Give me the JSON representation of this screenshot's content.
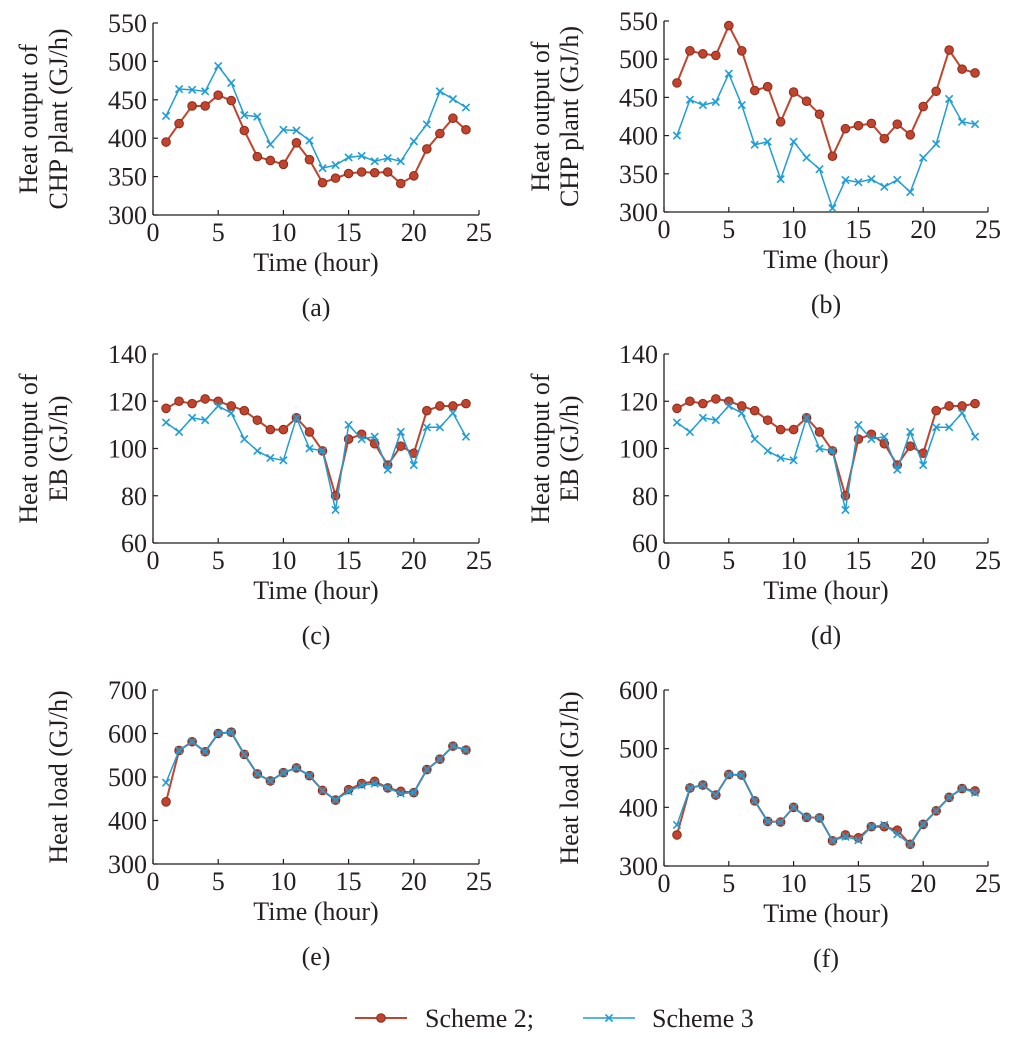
{
  "colors": {
    "scheme2": "#c1442e",
    "scheme3": "#1f9dd6",
    "axis": "#231f20"
  },
  "legend": {
    "position": "bottom-center",
    "entries": [
      {
        "label": "Scheme 2;",
        "color": "#c1442e",
        "marker": "circle"
      },
      {
        "label": "Scheme 3",
        "color": "#1f9dd6",
        "marker": "x"
      }
    ]
  },
  "chart_data": [
    {
      "type": "line",
      "panel": "(a)",
      "xlabel": "Time (hour)",
      "ylabel": [
        "Heat output of",
        "CHP plant (GJ/h)"
      ],
      "xlim": [
        0,
        25
      ],
      "ylim": [
        300,
        550
      ],
      "xticks": [
        0,
        5,
        10,
        15,
        20,
        25
      ],
      "yticks": [
        300,
        350,
        400,
        450,
        500,
        550
      ],
      "x": [
        1,
        2,
        3,
        4,
        5,
        6,
        7,
        8,
        9,
        10,
        11,
        12,
        13,
        14,
        15,
        16,
        17,
        18,
        19,
        20,
        21,
        22,
        23,
        24
      ],
      "series": [
        {
          "name": "Scheme 2",
          "values": [
            395,
            419,
            442,
            442,
            456,
            449,
            410,
            376,
            371,
            366,
            394,
            372,
            342,
            348,
            354,
            356,
            355,
            356,
            341,
            351,
            386,
            406,
            426,
            411
          ]
        },
        {
          "name": "Scheme 3",
          "values": [
            429,
            464,
            463,
            461,
            494,
            472,
            430,
            428,
            392,
            411,
            410,
            397,
            361,
            365,
            375,
            377,
            370,
            374,
            370,
            396,
            418,
            461,
            451,
            440
          ]
        }
      ]
    },
    {
      "type": "line",
      "panel": "(b)",
      "xlabel": "Time (hour)",
      "ylabel": [
        "Heat output of",
        "CHP plant (GJ/h)"
      ],
      "xlim": [
        0,
        25
      ],
      "ylim": [
        300,
        550
      ],
      "xticks": [
        0,
        5,
        10,
        15,
        20,
        25
      ],
      "yticks": [
        300,
        350,
        400,
        450,
        500,
        550
      ],
      "x": [
        1,
        2,
        3,
        4,
        5,
        6,
        7,
        8,
        9,
        10,
        11,
        12,
        13,
        14,
        15,
        16,
        17,
        18,
        19,
        20,
        21,
        22,
        23,
        24
      ],
      "series": [
        {
          "name": "Scheme 2",
          "values": [
            469,
            511,
            507,
            505,
            544,
            511,
            459,
            464,
            418,
            457,
            445,
            428,
            373,
            409,
            413,
            416,
            396,
            415,
            401,
            438,
            458,
            512,
            487,
            482
          ]
        },
        {
          "name": "Scheme 3",
          "values": [
            400,
            447,
            440,
            444,
            481,
            440,
            388,
            392,
            343,
            392,
            371,
            356,
            305,
            342,
            339,
            343,
            333,
            342,
            326,
            371,
            389,
            448,
            418,
            415
          ]
        }
      ]
    },
    {
      "type": "line",
      "panel": "(c)",
      "xlabel": "Time (hour)",
      "ylabel": [
        "Heat output of",
        "EB (GJ/h)"
      ],
      "xlim": [
        0,
        25
      ],
      "ylim": [
        60,
        140
      ],
      "xticks": [
        0,
        5,
        10,
        15,
        20,
        25
      ],
      "yticks": [
        60,
        80,
        100,
        120,
        140
      ],
      "x": [
        1,
        2,
        3,
        4,
        5,
        6,
        7,
        8,
        9,
        10,
        11,
        12,
        13,
        14,
        15,
        16,
        17,
        18,
        19,
        20,
        21,
        22,
        23,
        24
      ],
      "series": [
        {
          "name": "Scheme 2",
          "values": [
            117,
            120,
            119,
            121,
            120,
            118,
            116,
            112,
            108,
            108,
            113,
            107,
            99,
            80,
            104,
            106,
            102,
            93,
            101,
            98,
            116,
            118,
            118,
            119
          ]
        },
        {
          "name": "Scheme 3",
          "values": [
            111,
            107,
            113,
            112,
            118,
            115,
            104,
            99,
            96,
            95,
            113,
            100,
            99,
            74,
            110,
            104,
            105,
            91,
            107,
            93,
            109,
            109,
            115,
            105
          ]
        }
      ]
    },
    {
      "type": "line",
      "panel": "(d)",
      "xlabel": "Time (hour)",
      "ylabel": [
        "Heat output of",
        "EB (GJ/h)"
      ],
      "xlim": [
        0,
        25
      ],
      "ylim": [
        60,
        140
      ],
      "xticks": [
        0,
        5,
        10,
        15,
        20,
        25
      ],
      "yticks": [
        60,
        80,
        100,
        120,
        140
      ],
      "x": [
        1,
        2,
        3,
        4,
        5,
        6,
        7,
        8,
        9,
        10,
        11,
        12,
        13,
        14,
        15,
        16,
        17,
        18,
        19,
        20,
        21,
        22,
        23,
        24
      ],
      "series": [
        {
          "name": "Scheme 2",
          "values": [
            117,
            120,
            119,
            121,
            120,
            118,
            116,
            112,
            108,
            108,
            113,
            107,
            99,
            80,
            104,
            106,
            102,
            93,
            101,
            98,
            116,
            118,
            118,
            119
          ]
        },
        {
          "name": "Scheme 3",
          "values": [
            111,
            107,
            113,
            112,
            118,
            115,
            104,
            99,
            96,
            95,
            113,
            100,
            99,
            74,
            110,
            104,
            105,
            91,
            107,
            93,
            109,
            109,
            115,
            105
          ]
        }
      ]
    },
    {
      "type": "line",
      "panel": "(e)",
      "xlabel": "Time (hour)",
      "ylabel": [
        "Heat load (GJ/h)"
      ],
      "xlim": [
        0,
        25
      ],
      "ylim": [
        300,
        700
      ],
      "xticks": [
        0,
        5,
        10,
        15,
        20,
        25
      ],
      "yticks": [
        300,
        400,
        500,
        600,
        700
      ],
      "x": [
        1,
        2,
        3,
        4,
        5,
        6,
        7,
        8,
        9,
        10,
        11,
        12,
        13,
        14,
        15,
        16,
        17,
        18,
        19,
        20,
        21,
        22,
        23,
        24
      ],
      "series": [
        {
          "name": "Scheme 2",
          "values": [
            443,
            561,
            581,
            558,
            600,
            603,
            552,
            507,
            491,
            510,
            521,
            503,
            469,
            447,
            471,
            485,
            490,
            475,
            467,
            464,
            517,
            541,
            571,
            562
          ]
        },
        {
          "name": "Scheme 3",
          "values": [
            487,
            561,
            581,
            558,
            600,
            603,
            552,
            507,
            491,
            510,
            521,
            503,
            469,
            447,
            467,
            481,
            485,
            475,
            462,
            464,
            517,
            541,
            571,
            562
          ]
        }
      ]
    },
    {
      "type": "line",
      "panel": "(f)",
      "xlabel": "Time (hour)",
      "ylabel": [
        "Heat load (GJ/h)"
      ],
      "xlim": [
        0,
        25
      ],
      "ylim": [
        300,
        600
      ],
      "xticks": [
        0,
        5,
        10,
        15,
        20,
        25
      ],
      "yticks": [
        300,
        400,
        500,
        600
      ],
      "x": [
        1,
        2,
        3,
        4,
        5,
        6,
        7,
        8,
        9,
        10,
        11,
        12,
        13,
        14,
        15,
        16,
        17,
        18,
        19,
        20,
        21,
        22,
        23,
        24
      ],
      "series": [
        {
          "name": "Scheme 2",
          "values": [
            353,
            433,
            438,
            421,
            456,
            455,
            411,
            376,
            375,
            400,
            383,
            382,
            343,
            353,
            348,
            367,
            367,
            361,
            337,
            371,
            394,
            417,
            432,
            428
          ]
        },
        {
          "name": "Scheme 3",
          "values": [
            370,
            433,
            438,
            421,
            456,
            455,
            411,
            376,
            375,
            400,
            383,
            382,
            343,
            350,
            344,
            367,
            370,
            354,
            337,
            371,
            394,
            417,
            432,
            425
          ]
        }
      ]
    }
  ]
}
